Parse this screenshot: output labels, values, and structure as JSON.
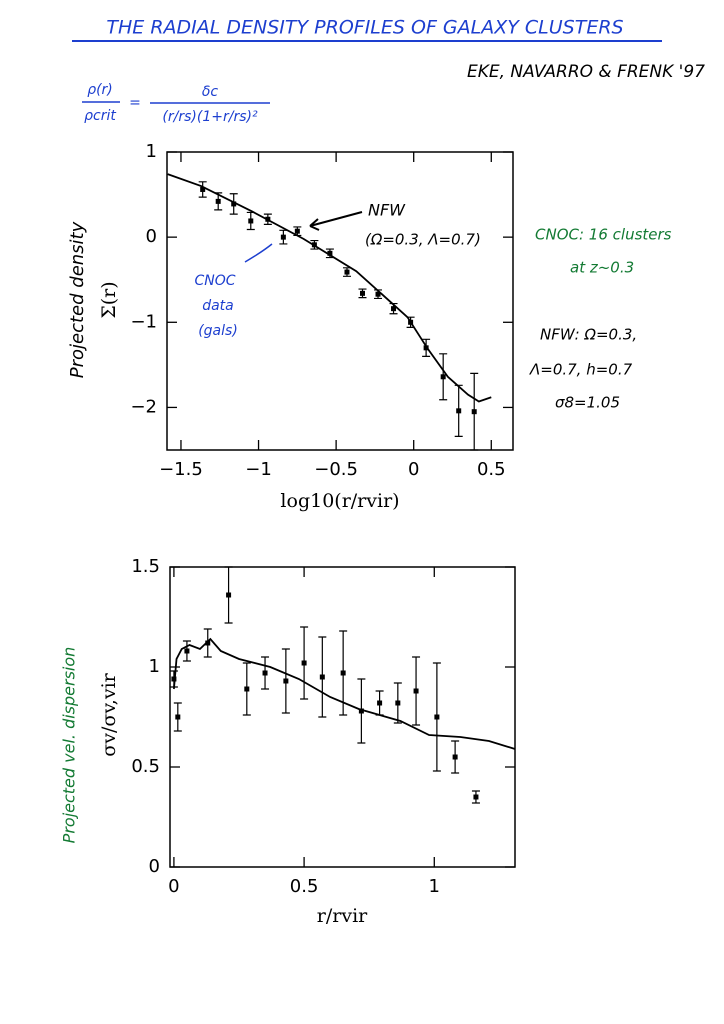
{
  "header": {
    "title": "THE RADIAL DENSITY PROFILES OF GALAXY CLUSTERS",
    "authors": "EKE, NAVARRO & FRENK '97",
    "formula": {
      "lhs_num": "ρ(r)",
      "lhs_den": "ρcrit",
      "equals": "=",
      "rhs_num": "δc",
      "rhs_den": "(r/rs)(1+r/rs)²"
    }
  },
  "notes": [
    "CNOC: 16 clusters",
    "at z~0.3",
    "NFW: Ω=0.3,",
    "Λ=0.7, h=0.7",
    "σ8=1.05"
  ],
  "chart_data": [
    {
      "type": "scatter",
      "y_label": [
        "Projected density",
        "Σ(r)"
      ],
      "x_label": "log10(r/rvir)",
      "annotations": [
        "NFW",
        "(Ω=0.3, Λ=0.7)",
        "CNOC",
        "data",
        "(gals)"
      ],
      "xlim": [
        -1.59,
        0.64
      ],
      "ylim": [
        -2.5,
        1
      ],
      "xticks": [
        {
          "value": -1.5,
          "label": "−1.5"
        },
        {
          "value": -1,
          "label": "−1"
        },
        {
          "value": -0.5,
          "label": "−0.5"
        },
        0,
        0.5
      ],
      "yticks": [
        {
          "value": -2,
          "label": "−2"
        },
        {
          "value": -1,
          "label": "−1"
        },
        0,
        1
      ],
      "series": [
        {
          "type": "line",
          "color": "#000000",
          "x": [
            -1.586,
            -1.37,
            -1.04,
            -0.71,
            -0.37,
            -0.04,
            0.09,
            0.22,
            0.35,
            0.42,
            0.5
          ],
          "values": [
            0.74,
            0.6,
            0.3,
            -0.02,
            -0.4,
            -0.94,
            -1.31,
            -1.64,
            -1.85,
            -1.93,
            -1.88
          ]
        },
        {
          "type": "errorbar",
          "color": "#000000",
          "x": [
            -1.36,
            -1.26,
            -1.16,
            -1.05,
            -0.94,
            -0.84,
            -0.75,
            -0.64,
            -0.54,
            -0.43,
            -0.33,
            -0.23,
            -0.13,
            -0.02,
            0.08,
            0.19,
            0.29,
            0.39
          ],
          "values": [
            0.56,
            0.42,
            0.39,
            0.19,
            0.21,
            0.0,
            0.07,
            -0.09,
            -0.19,
            -0.41,
            -0.66,
            -0.67,
            -0.84,
            -1.0,
            -1.3,
            -1.64,
            -2.04,
            -2.05
          ],
          "errors": [
            0.09,
            0.1,
            0.12,
            0.1,
            0.06,
            0.08,
            0.05,
            0.05,
            0.05,
            0.05,
            0.05,
            0.05,
            0.06,
            0.06,
            0.1,
            0.27,
            0.3,
            0.45
          ]
        }
      ]
    },
    {
      "type": "scatter",
      "y_label": [
        "Projected vel. dispersion",
        "σv/σv,vir"
      ],
      "x_label": "r/rvir",
      "annotations": [],
      "xlim": [
        -0.015,
        1.31
      ],
      "ylim": [
        0,
        1.5
      ],
      "xticks": [
        0,
        0.5,
        1
      ],
      "yticks": [
        0,
        0.5,
        1,
        1.5
      ],
      "series": [
        {
          "type": "line",
          "color": "#000000",
          "x": [
            0.0,
            0.01,
            0.03,
            0.06,
            0.1,
            0.14,
            0.18,
            0.25,
            0.37,
            0.48,
            0.6,
            0.71,
            0.87,
            0.98,
            1.1,
            1.21,
            1.31
          ],
          "values": [
            0.89,
            1.04,
            1.09,
            1.11,
            1.09,
            1.14,
            1.08,
            1.04,
            1.0,
            0.94,
            0.85,
            0.79,
            0.73,
            0.66,
            0.65,
            0.63,
            0.59
          ]
        },
        {
          "type": "errorbar",
          "color": "#000000",
          "x": [
            0.0,
            0.015,
            0.05,
            0.13,
            0.21,
            0.28,
            0.35,
            0.43,
            0.5,
            0.57,
            0.65,
            0.72,
            0.79,
            0.86,
            0.93,
            1.01,
            1.08,
            1.16
          ],
          "values": [
            0.94,
            0.75,
            1.08,
            1.12,
            1.36,
            0.89,
            0.97,
            0.93,
            1.02,
            0.95,
            0.97,
            0.78,
            0.82,
            0.82,
            0.88,
            0.75,
            0.55,
            0.35
          ],
          "errors": [
            0.04,
            0.07,
            0.05,
            0.07,
            0.14,
            0.13,
            0.08,
            0.16,
            0.18,
            0.2,
            0.21,
            0.16,
            0.06,
            0.1,
            0.17,
            0.27,
            0.08,
            0.03
          ]
        }
      ]
    }
  ]
}
